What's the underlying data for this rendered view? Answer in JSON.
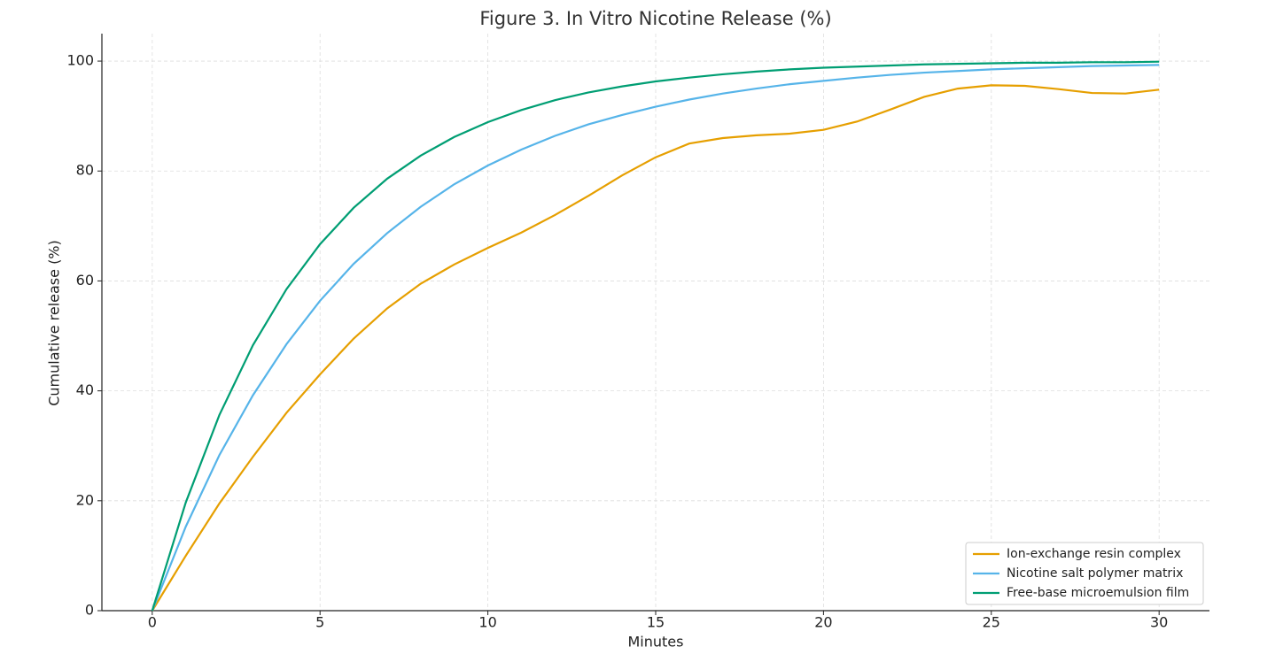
{
  "chart_data": {
    "type": "line",
    "title": "Figure 3. In Vitro Nicotine Release (%)",
    "x_label": "Minutes",
    "y_label": "Cumulative release (%)",
    "x": [
      0,
      1,
      2,
      3,
      4,
      5,
      6,
      7,
      8,
      9,
      10,
      11,
      12,
      13,
      14,
      15,
      16,
      17,
      18,
      19,
      20,
      21,
      22,
      23,
      24,
      25,
      26,
      27,
      28,
      29,
      30
    ],
    "series": [
      {
        "name": "Ion-exchange resin complex",
        "color": "#E69F00",
        "values": [
          0,
          10,
          19.5,
          28,
          36,
          43,
          49.5,
          55,
          59.5,
          63,
          66,
          68.8,
          72,
          75.5,
          79.2,
          82.5,
          85,
          86,
          86.5,
          86.8,
          87.5,
          89,
          91.2,
          93.5,
          95,
          95.6,
          95.5,
          94.9,
          94.2,
          94.1,
          94.8
        ]
      },
      {
        "name": "Nicotine salt polymer matrix",
        "color": "#56B4E9",
        "values": [
          0,
          15.3,
          28.3,
          39.2,
          48.5,
          56.4,
          63.1,
          68.7,
          73.5,
          77.6,
          81.0,
          83.9,
          86.4,
          88.5,
          90.2,
          91.7,
          93.0,
          94.1,
          95.0,
          95.8,
          96.4,
          97.0,
          97.5,
          97.9,
          98.2,
          98.5,
          98.7,
          98.9,
          99.1,
          99.2,
          99.3
        ]
      },
      {
        "name": "Free-base microemulsion film",
        "color": "#009E73",
        "values": [
          0,
          19.7,
          35.6,
          48.3,
          58.5,
          66.7,
          73.3,
          78.6,
          82.8,
          86.2,
          88.9,
          91.1,
          92.9,
          94.3,
          95.4,
          96.3,
          97.0,
          97.6,
          98.1,
          98.5,
          98.8,
          99.0,
          99.2,
          99.4,
          99.5,
          99.6,
          99.7,
          99.7,
          99.8,
          99.8,
          99.9
        ]
      }
    ],
    "xlim": [
      -1.5,
      31.5
    ],
    "ylim": [
      0,
      105
    ],
    "xticks": [
      0,
      5,
      10,
      15,
      20,
      25,
      30
    ],
    "yticks": [
      0,
      20,
      40,
      60,
      80,
      100
    ],
    "grid": true,
    "legend": "lower right"
  }
}
